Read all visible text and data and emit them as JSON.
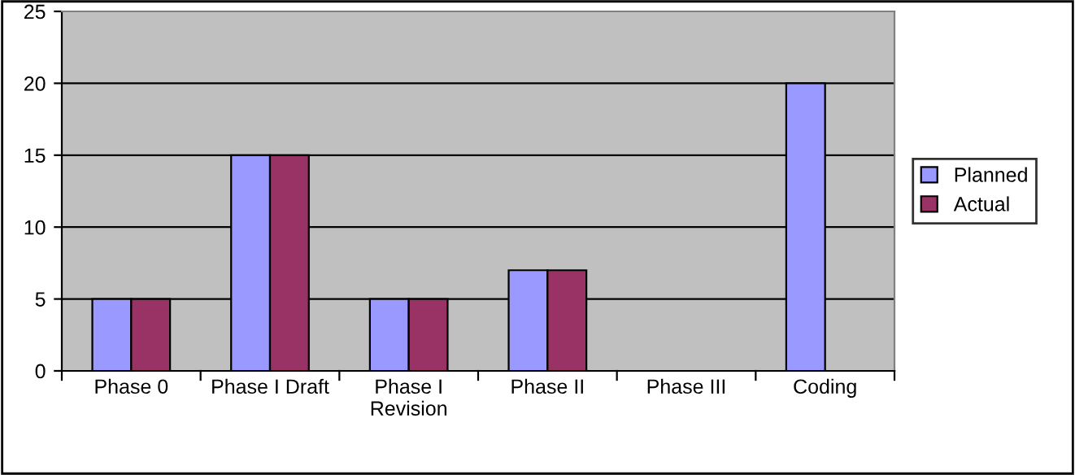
{
  "chart_data": {
    "type": "bar",
    "categories": [
      "Phase 0",
      "Phase I Draft",
      "Phase I Revision",
      "Phase II",
      "Phase III",
      "Coding"
    ],
    "series": [
      {
        "name": "Planned",
        "color": "#9999ff",
        "values": [
          5,
          15,
          5,
          7,
          null,
          20
        ]
      },
      {
        "name": "Actual",
        "color": "#993366",
        "values": [
          5,
          15,
          5,
          7,
          null,
          null
        ]
      }
    ],
    "ylim": [
      0,
      25
    ],
    "yticks": [
      0,
      5,
      10,
      15,
      20,
      25
    ],
    "grid": "y",
    "legend": "right"
  }
}
